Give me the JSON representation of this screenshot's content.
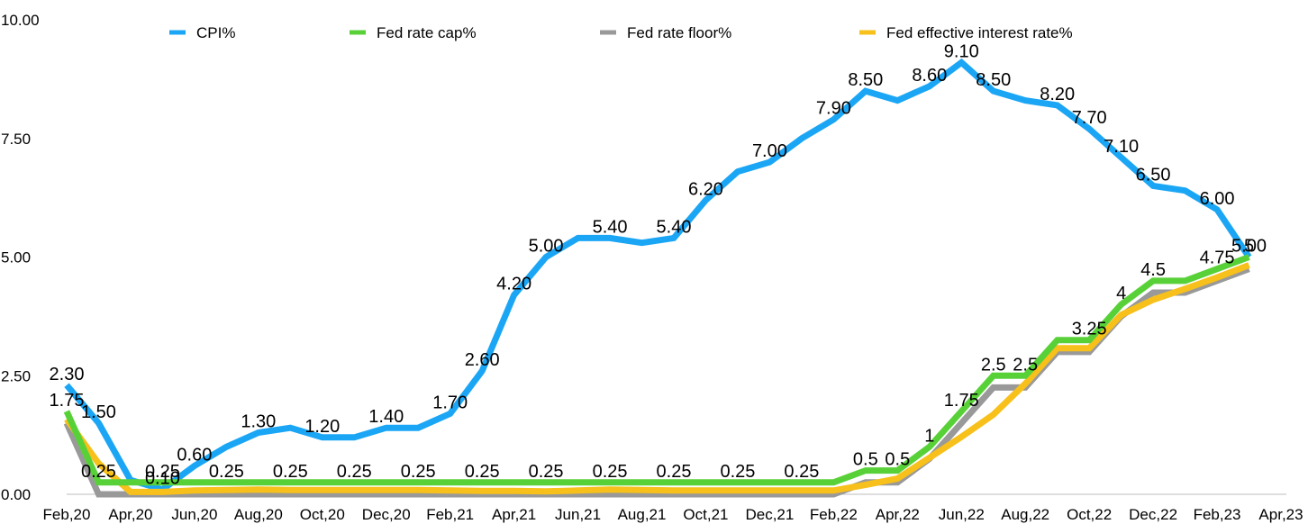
{
  "chart_data": {
    "type": "line",
    "title": "",
    "xlabel": "",
    "ylabel": "",
    "ylim": [
      0,
      10
    ],
    "y_ticks": [
      "0.00",
      "2.50",
      "5.00",
      "7.50",
      "10.00"
    ],
    "y_tick_values": [
      0,
      2.5,
      5,
      7.5,
      10
    ],
    "x_ticks": [
      "Feb,20",
      "Apr,20",
      "Jun,20",
      "Aug,20",
      "Oct,20",
      "Dec,20",
      "Feb,21",
      "Apr,21",
      "Jun,21",
      "Aug,21",
      "Oct,21",
      "Dec,21",
      "Feb,22",
      "Apr,22",
      "Jun,22",
      "Aug,22",
      "Oct,22",
      "Dec,22",
      "Feb,23",
      "Apr,23"
    ],
    "x": [
      "Feb,20",
      "Mar,20",
      "Apr,20",
      "May,20",
      "Jun,20",
      "Jul,20",
      "Aug,20",
      "Sep,20",
      "Oct,20",
      "Nov,20",
      "Dec,20",
      "Jan,21",
      "Feb,21",
      "Mar,21",
      "Apr,21",
      "May,21",
      "Jun,21",
      "Jul,21",
      "Aug,21",
      "Sep,21",
      "Oct,21",
      "Nov,21",
      "Dec,21",
      "Jan,22",
      "Feb,22",
      "Mar,22",
      "Apr,22",
      "May,22",
      "Jun,22",
      "Jul,22",
      "Aug,22",
      "Sep,22",
      "Oct,22",
      "Nov,22",
      "Dec,22",
      "Jan,23",
      "Feb,23",
      "Mar,23",
      "Apr,23"
    ],
    "grid": false,
    "legend_position": "top",
    "series": [
      {
        "name": "CPI%",
        "color": "#1BA6F5",
        "values": [
          2.3,
          1.5,
          0.3,
          0.1,
          0.6,
          1.0,
          1.3,
          1.4,
          1.2,
          1.2,
          1.4,
          1.4,
          1.7,
          2.6,
          4.2,
          5.0,
          5.4,
          5.4,
          5.3,
          5.4,
          6.2,
          6.8,
          7.0,
          7.5,
          7.9,
          8.5,
          8.3,
          8.6,
          9.1,
          8.5,
          8.3,
          8.2,
          7.7,
          7.1,
          6.5,
          6.4,
          6.0,
          5.0,
          null
        ]
      },
      {
        "name": "Fed rate floor%",
        "color": "#999999",
        "values": [
          1.5,
          0,
          0,
          0,
          0,
          0,
          0,
          0,
          0,
          0,
          0,
          0,
          0,
          0,
          0,
          0,
          0,
          0,
          0,
          0,
          0,
          0,
          0,
          0,
          0,
          0.25,
          0.25,
          0.75,
          1.5,
          2.25,
          2.25,
          3.0,
          3.0,
          3.75,
          4.25,
          4.25,
          4.5,
          4.75,
          null
        ]
      },
      {
        "name": "Fed effective interest rate%",
        "color": "#F7C01A",
        "values": [
          1.58,
          0.65,
          0.05,
          0.05,
          0.08,
          0.09,
          0.1,
          0.09,
          0.09,
          0.09,
          0.09,
          0.09,
          0.08,
          0.07,
          0.07,
          0.06,
          0.08,
          0.1,
          0.09,
          0.08,
          0.08,
          0.08,
          0.08,
          0.08,
          0.08,
          0.2,
          0.33,
          0.77,
          1.21,
          1.68,
          2.33,
          3.08,
          3.08,
          3.78,
          4.1,
          4.33,
          4.57,
          4.83,
          null
        ]
      },
      {
        "name": "Fed rate cap%",
        "color": "#58D138",
        "values": [
          1.75,
          0.25,
          0.25,
          0.25,
          0.25,
          0.25,
          0.25,
          0.25,
          0.25,
          0.25,
          0.25,
          0.25,
          0.25,
          0.25,
          0.25,
          0.25,
          0.25,
          0.25,
          0.25,
          0.25,
          0.25,
          0.25,
          0.25,
          0.25,
          0.25,
          0.5,
          0.5,
          1.0,
          1.75,
          2.5,
          2.5,
          3.25,
          3.25,
          4.0,
          4.5,
          4.5,
          4.75,
          5.0,
          null
        ]
      }
    ],
    "legend": [
      "CPI%",
      "Fed rate cap%",
      "Fed rate floor%",
      "Fed effective interest rate%"
    ],
    "legend_colors": [
      "#1BA6F5",
      "#58D138",
      "#999999",
      "#F7C01A"
    ],
    "data_labels": [
      {
        "text": "2.30",
        "x": "Feb,20",
        "y": 2.3
      },
      {
        "text": "1.50",
        "x": "Mar,20",
        "y": 1.5
      },
      {
        "text": "0.10",
        "x": "May,20",
        "y": 0.1
      },
      {
        "text": "0.60",
        "x": "Jun,20",
        "y": 0.6
      },
      {
        "text": "1.30",
        "x": "Aug,20",
        "y": 1.3
      },
      {
        "text": "1.20",
        "x": "Oct,20",
        "y": 1.2
      },
      {
        "text": "1.40",
        "x": "Dec,20",
        "y": 1.4
      },
      {
        "text": "1.70",
        "x": "Feb,21",
        "y": 1.7
      },
      {
        "text": "2.60",
        "x": "Mar,21",
        "y": 2.6
      },
      {
        "text": "4.20",
        "x": "Apr,21",
        "y": 4.2
      },
      {
        "text": "5.00",
        "x": "May,21",
        "y": 5.0
      },
      {
        "text": "5.40",
        "x": "Jul,21",
        "y": 5.4
      },
      {
        "text": "5.40",
        "x": "Sep,21",
        "y": 5.4
      },
      {
        "text": "6.20",
        "x": "Oct,21",
        "y": 6.2
      },
      {
        "text": "7.00",
        "x": "Dec,21",
        "y": 7.0
      },
      {
        "text": "7.90",
        "x": "Feb,22",
        "y": 7.9
      },
      {
        "text": "8.50",
        "x": "Mar,22",
        "y": 8.5
      },
      {
        "text": "8.60",
        "x": "May,22",
        "y": 8.6
      },
      {
        "text": "9.10",
        "x": "Jun,22",
        "y": 9.1
      },
      {
        "text": "8.50",
        "x": "Jul,22",
        "y": 8.5
      },
      {
        "text": "8.20",
        "x": "Sep,22",
        "y": 8.2
      },
      {
        "text": "7.70",
        "x": "Oct,22",
        "y": 7.7
      },
      {
        "text": "7.10",
        "x": "Nov,22",
        "y": 7.1
      },
      {
        "text": "6.50",
        "x": "Dec,22",
        "y": 6.5
      },
      {
        "text": "6.00",
        "x": "Feb,23",
        "y": 6.0
      },
      {
        "text": "5.00",
        "x": "Mar,23",
        "y": 5.0
      },
      {
        "text": "1.75",
        "x": "Feb,20",
        "y": 1.75
      },
      {
        "text": "0.25",
        "x": "Mar,20",
        "y": 0.25
      },
      {
        "text": "0.25",
        "x": "May,20",
        "y": 0.25
      },
      {
        "text": "0.25",
        "x": "Jul,20",
        "y": 0.25
      },
      {
        "text": "0.25",
        "x": "Sep,20",
        "y": 0.25
      },
      {
        "text": "0.25",
        "x": "Nov,20",
        "y": 0.25
      },
      {
        "text": "0.25",
        "x": "Jan,21",
        "y": 0.25
      },
      {
        "text": "0.25",
        "x": "Mar,21",
        "y": 0.25
      },
      {
        "text": "0.25",
        "x": "May,21",
        "y": 0.25
      },
      {
        "text": "0.25",
        "x": "Jul,21",
        "y": 0.25
      },
      {
        "text": "0.25",
        "x": "Sep,21",
        "y": 0.25
      },
      {
        "text": "0.25",
        "x": "Nov,21",
        "y": 0.25
      },
      {
        "text": "0.25",
        "x": "Jan,22",
        "y": 0.25
      },
      {
        "text": "0.5",
        "x": "Mar,22",
        "y": 0.5
      },
      {
        "text": "0.5",
        "x": "Apr,22",
        "y": 0.5
      },
      {
        "text": "1",
        "x": "May,22",
        "y": 1.0
      },
      {
        "text": "1.75",
        "x": "Jun,22",
        "y": 1.75
      },
      {
        "text": "2.5",
        "x": "Jul,22",
        "y": 2.5
      },
      {
        "text": "2.5",
        "x": "Aug,22",
        "y": 2.5
      },
      {
        "text": "3.25",
        "x": "Oct,22",
        "y": 3.25
      },
      {
        "text": "4",
        "x": "Nov,22",
        "y": 4.0
      },
      {
        "text": "4.5",
        "x": "Dec,22",
        "y": 4.5
      },
      {
        "text": "4.75",
        "x": "Feb,23",
        "y": 4.75
      },
      {
        "text": "5",
        "x": "Mar,23",
        "y": 5.0
      }
    ]
  }
}
